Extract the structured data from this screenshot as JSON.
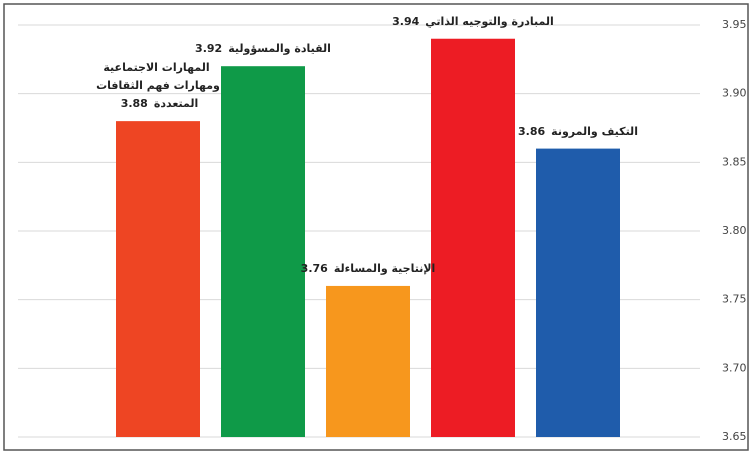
{
  "chart_data": {
    "type": "bar",
    "categories": [
      "المهارات الاجتماعية ومهارات فهم الثقافات المتعددة",
      "القيادة والمسؤولية",
      "الإنتاجية والمساءلة",
      "المبادرة والتوجيه الذاتي",
      "التكيف والمرونة"
    ],
    "values": [
      3.88,
      3.92,
      3.76,
      3.94,
      3.86
    ],
    "colors": [
      "#ee4523",
      "#0f9a48",
      "#f7971d",
      "#ed1c24",
      "#1f5cab"
    ],
    "ylim": [
      3.65,
      3.95
    ],
    "yticks": [
      3.65,
      {
        "value": 3.7,
        "label": "3.70"
      },
      3.75,
      {
        "value": 3.8,
        "label": "3.80"
      },
      3.85,
      {
        "value": 3.9,
        "label": "3.90"
      },
      3.95
    ],
    "grid": true
  }
}
